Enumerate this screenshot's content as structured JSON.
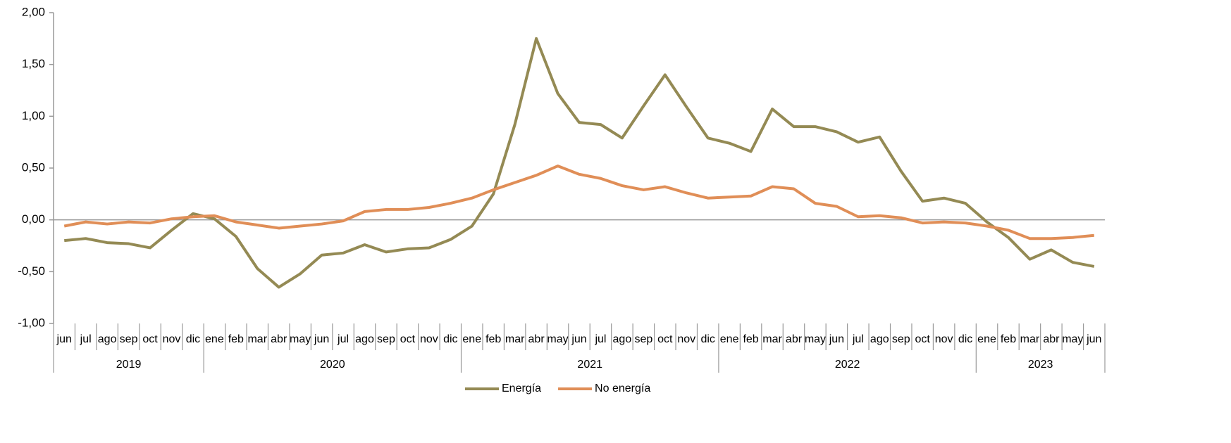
{
  "chart_data": {
    "type": "line",
    "category_groups": [
      {
        "label": "2019",
        "categories": [
          "jun",
          "jul",
          "ago",
          "sep",
          "oct",
          "nov",
          "dic"
        ]
      },
      {
        "label": "2020",
        "categories": [
          "ene",
          "feb",
          "mar",
          "abr",
          "may",
          "jun",
          "jul",
          "ago",
          "sep",
          "oct",
          "nov",
          "dic"
        ]
      },
      {
        "label": "2021",
        "categories": [
          "ene",
          "feb",
          "mar",
          "abr",
          "may",
          "jun",
          "jul",
          "ago",
          "sep",
          "oct",
          "nov",
          "dic"
        ]
      },
      {
        "label": "2022",
        "categories": [
          "ene",
          "feb",
          "mar",
          "abr",
          "may",
          "jun",
          "jul",
          "ago",
          "sep",
          "oct",
          "nov",
          "dic"
        ]
      },
      {
        "label": "2023",
        "categories": [
          "ene",
          "feb",
          "mar",
          "abr",
          "may",
          "jun"
        ]
      }
    ],
    "series": [
      {
        "name": "Energía",
        "color": "#948a54",
        "values": [
          -0.2,
          -0.18,
          -0.22,
          -0.23,
          -0.27,
          -0.1,
          0.06,
          0.01,
          -0.16,
          -0.47,
          -0.65,
          -0.52,
          -0.34,
          -0.32,
          -0.24,
          -0.31,
          -0.28,
          -0.27,
          -0.19,
          -0.06,
          0.25,
          0.92,
          1.75,
          1.22,
          0.94,
          0.92,
          0.79,
          1.1,
          1.4,
          1.09,
          0.79,
          0.74,
          0.66,
          1.07,
          0.9,
          0.9,
          0.85,
          0.75,
          0.8,
          0.47,
          0.18,
          0.21,
          0.16,
          -0.02,
          -0.17,
          -0.38,
          -0.29,
          -0.41,
          -0.45
        ]
      },
      {
        "name": "No energía",
        "color": "#e08e57",
        "values": [
          -0.06,
          -0.02,
          -0.04,
          -0.02,
          -0.03,
          0.01,
          0.03,
          0.04,
          -0.02,
          -0.05,
          -0.08,
          -0.06,
          -0.04,
          -0.01,
          0.08,
          0.1,
          0.1,
          0.12,
          0.16,
          0.21,
          0.29,
          0.36,
          0.43,
          0.52,
          0.44,
          0.4,
          0.33,
          0.29,
          0.32,
          0.26,
          0.21,
          0.22,
          0.23,
          0.32,
          0.3,
          0.16,
          0.13,
          0.03,
          0.04,
          0.02,
          -0.03,
          -0.02,
          -0.03,
          -0.06,
          -0.1,
          -0.18,
          -0.18,
          -0.17,
          -0.15
        ]
      }
    ],
    "ylim": [
      -1,
      2
    ],
    "yticks": [
      {
        "value": -1,
        "label": "-1,00"
      },
      {
        "value": -0.5,
        "label": "-0,50"
      },
      {
        "value": 0,
        "label": "0,00"
      },
      {
        "value": 0.5,
        "label": "0,50"
      },
      {
        "value": 1,
        "label": "1,00"
      },
      {
        "value": 1.5,
        "label": "1,50"
      },
      {
        "value": 2,
        "label": "2,00"
      }
    ],
    "legend": "bottom"
  }
}
